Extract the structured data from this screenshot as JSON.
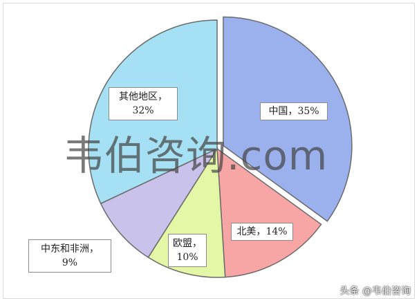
{
  "chart_data": {
    "type": "pie",
    "slices": [
      {
        "label": "中国，35%",
        "value": 35,
        "color": "#9ab1ee",
        "explode": 1
      },
      {
        "label": "北美，14%",
        "value": 14,
        "color": "#f8a5a5",
        "explode": 0
      },
      {
        "label": "欧盟，10%",
        "value": 10,
        "color": "#e4f7a6",
        "explode": 0
      },
      {
        "label": "中东和非洲，9%",
        "value": 9,
        "color": "#c9c2ea",
        "explode": 0
      },
      {
        "label": "其他地区，32%",
        "value": 32,
        "color": "#a6e0f4",
        "explode": 0
      }
    ],
    "labels": {
      "china": [
        "中国，",
        "35%"
      ],
      "north_america": [
        "北美，",
        "14%"
      ],
      "eu": [
        "欧盟，",
        "10%"
      ],
      "middle_east_africa": [
        "中东和非洲，",
        "9%"
      ],
      "other": [
        "其他地区，",
        "32%"
      ]
    }
  },
  "watermark": "韦伯咨询.com",
  "footer": "头条 @韦伯咨询"
}
